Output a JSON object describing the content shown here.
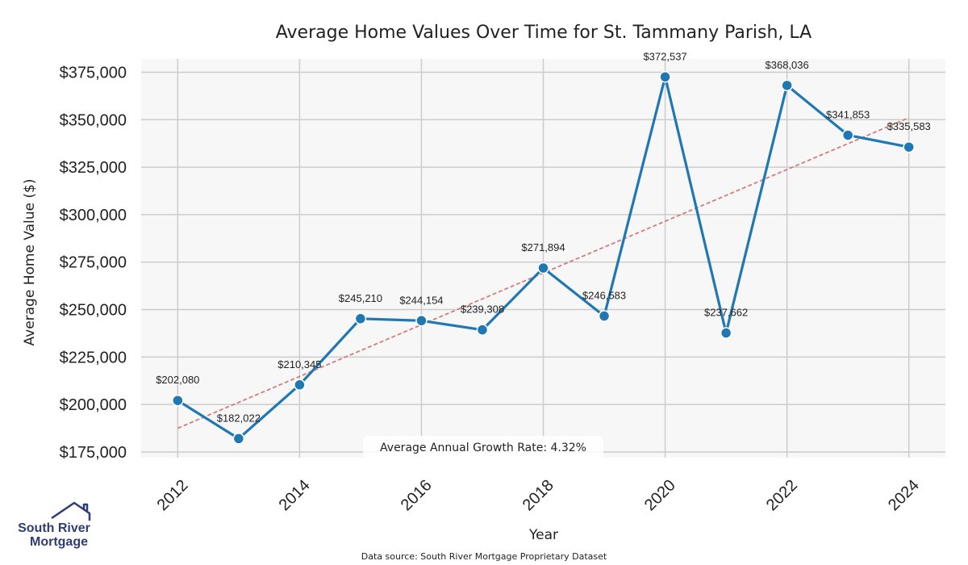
{
  "chart_data": {
    "type": "line",
    "title": "Average Home Values Over Time for St. Tammany Parish, LA",
    "xlabel": "Year",
    "ylabel": "Average Home Value ($)",
    "x": [
      2012,
      2013,
      2014,
      2015,
      2016,
      2017,
      2018,
      2019,
      2020,
      2021,
      2022,
      2023,
      2024
    ],
    "values": [
      202080,
      182022,
      210345,
      245210,
      244154,
      239308,
      271894,
      246583,
      372537,
      237662,
      368036,
      341853,
      335583
    ],
    "data_labels": [
      "$202,080",
      "$182,022",
      "$210,345",
      "$245,210",
      "$244,154",
      "$239,308",
      "$271,894",
      "$246,583",
      "$372,537",
      "$237,662",
      "$368,036",
      "$341,853",
      "$335,583"
    ],
    "x_ticks": [
      "2012",
      "2014",
      "2016",
      "2018",
      "2020",
      "2022",
      "2024"
    ],
    "y_ticks": [
      {
        "value": 175000,
        "label": "$175,000"
      },
      {
        "value": 200000,
        "label": "$200,000"
      },
      {
        "value": 225000,
        "label": "$225,000"
      },
      {
        "value": 250000,
        "label": "$250,000"
      },
      {
        "value": 275000,
        "label": "$275,000"
      },
      {
        "value": 300000,
        "label": "$300,000"
      },
      {
        "value": 325000,
        "label": "$325,000"
      },
      {
        "value": 350000,
        "label": "$350,000"
      },
      {
        "value": 375000,
        "label": "$375,000"
      }
    ],
    "xlim": [
      2011.4,
      2024.6
    ],
    "ylim": [
      172000,
      382000
    ],
    "grid": true,
    "trend_line": {
      "start": [
        2012,
        187500
      ],
      "end": [
        2024,
        351000
      ]
    },
    "annotation": "Average Annual Growth Rate: 4.32%",
    "source": "Data source: South River Mortgage Proprietary Dataset",
    "colors": {
      "line": "#1f77b4",
      "trend": "#d47a7a",
      "plot_bg": "#f7f7f7",
      "grid": "#cccccc"
    }
  },
  "logo": {
    "line1": "South River",
    "line2": "Mortgage"
  }
}
